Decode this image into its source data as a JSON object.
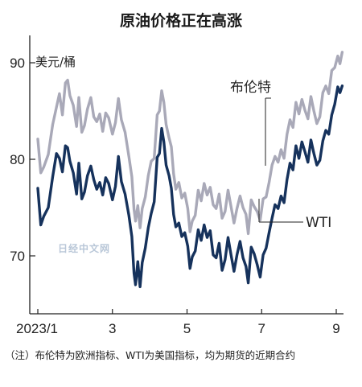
{
  "chart_data": {
    "type": "line",
    "title": "原油价格正在高涨",
    "unit_label": "美元/桶",
    "x_tick_labels": [
      "2023/1",
      "3",
      "5",
      "7",
      "9"
    ],
    "x_tick_months": [
      0,
      2,
      4,
      6,
      8
    ],
    "y_ticks": [
      70,
      80,
      90
    ],
    "ylim": [
      64.5,
      92
    ],
    "xlim_months": [
      0,
      8.3
    ],
    "grid": false,
    "note": "（注）布伦特为欧洲指标、WTI为美国指标，均为期货的近期合约",
    "watermark": "日经中文网",
    "series": [
      {
        "name": "布伦特",
        "color": "#a9a9b8",
        "points": [
          [
            0.0,
            82.1
          ],
          [
            0.08,
            78.6
          ],
          [
            0.16,
            79.2
          ],
          [
            0.28,
            80.5
          ],
          [
            0.4,
            83.6
          ],
          [
            0.5,
            85.4
          ],
          [
            0.58,
            86.8
          ],
          [
            0.66,
            84.6
          ],
          [
            0.74,
            87.9
          ],
          [
            0.8,
            88.2
          ],
          [
            0.86,
            86.6
          ],
          [
            0.95,
            85.6
          ],
          [
            1.04,
            83.4
          ],
          [
            1.1,
            86.4
          ],
          [
            1.18,
            82.8
          ],
          [
            1.25,
            83.5
          ],
          [
            1.33,
            85.2
          ],
          [
            1.42,
            86.4
          ],
          [
            1.5,
            84.4
          ],
          [
            1.58,
            83.9
          ],
          [
            1.66,
            84.7
          ],
          [
            1.74,
            82.9
          ],
          [
            1.82,
            84.8
          ],
          [
            1.9,
            84.3
          ],
          [
            2.0,
            82.6
          ],
          [
            2.08,
            83.8
          ],
          [
            2.16,
            86.3
          ],
          [
            2.24,
            84.1
          ],
          [
            2.34,
            82.8
          ],
          [
            2.44,
            80.3
          ],
          [
            2.52,
            78.2
          ],
          [
            2.58,
            74.8
          ],
          [
            2.62,
            73.6
          ],
          [
            2.68,
            75.2
          ],
          [
            2.74,
            72.9
          ],
          [
            2.8,
            74.9
          ],
          [
            2.88,
            76.1
          ],
          [
            2.96,
            78.3
          ],
          [
            3.04,
            79.8
          ],
          [
            3.12,
            80.1
          ],
          [
            3.2,
            84.6
          ],
          [
            3.26,
            85.0
          ],
          [
            3.32,
            87.1
          ],
          [
            3.38,
            85.9
          ],
          [
            3.44,
            83.6
          ],
          [
            3.52,
            82.2
          ],
          [
            3.58,
            81.3
          ],
          [
            3.64,
            78.5
          ],
          [
            3.7,
            76.9
          ],
          [
            3.78,
            77.6
          ],
          [
            3.86,
            76.0
          ],
          [
            3.94,
            76.5
          ],
          [
            4.02,
            74.9
          ],
          [
            4.08,
            72.5
          ],
          [
            4.14,
            73.6
          ],
          [
            4.22,
            74.2
          ],
          [
            4.3,
            76.8
          ],
          [
            4.38,
            75.7
          ],
          [
            4.46,
            77.5
          ],
          [
            4.54,
            76.3
          ],
          [
            4.62,
            77.1
          ],
          [
            4.7,
            75.3
          ],
          [
            4.78,
            74.9
          ],
          [
            4.86,
            76.4
          ],
          [
            4.94,
            73.9
          ],
          [
            5.02,
            74.6
          ],
          [
            5.1,
            76.8
          ],
          [
            5.18,
            75.1
          ],
          [
            5.26,
            73.4
          ],
          [
            5.34,
            74.9
          ],
          [
            5.42,
            76.2
          ],
          [
            5.5,
            75.0
          ],
          [
            5.58,
            74.3
          ],
          [
            5.64,
            72.3
          ],
          [
            5.72,
            75.8
          ],
          [
            5.8,
            75.1
          ],
          [
            5.88,
            74.6
          ],
          [
            5.96,
            73.7
          ],
          [
            6.04,
            75.9
          ],
          [
            6.12,
            76.1
          ],
          [
            6.2,
            77.6
          ],
          [
            6.28,
            79.4
          ],
          [
            6.36,
            80.3
          ],
          [
            6.44,
            79.7
          ],
          [
            6.52,
            81.0
          ],
          [
            6.6,
            80.1
          ],
          [
            6.68,
            82.6
          ],
          [
            6.76,
            84.1
          ],
          [
            6.84,
            83.3
          ],
          [
            6.92,
            85.9
          ],
          [
            7.0,
            84.7
          ],
          [
            7.08,
            86.2
          ],
          [
            7.16,
            85.1
          ],
          [
            7.24,
            84.2
          ],
          [
            7.32,
            86.5
          ],
          [
            7.4,
            85.0
          ],
          [
            7.48,
            83.7
          ],
          [
            7.56,
            84.4
          ],
          [
            7.64,
            86.9
          ],
          [
            7.72,
            87.6
          ],
          [
            7.8,
            86.8
          ],
          [
            7.88,
            89.2
          ],
          [
            7.96,
            89.5
          ],
          [
            8.04,
            90.7
          ],
          [
            8.1,
            89.9
          ],
          [
            8.16,
            91.1
          ]
        ]
      },
      {
        "name": "WTI",
        "color": "#16325c",
        "points": [
          [
            0.0,
            77.0
          ],
          [
            0.08,
            73.2
          ],
          [
            0.16,
            74.1
          ],
          [
            0.28,
            75.0
          ],
          [
            0.4,
            78.2
          ],
          [
            0.5,
            80.6
          ],
          [
            0.58,
            80.1
          ],
          [
            0.66,
            78.7
          ],
          [
            0.74,
            81.4
          ],
          [
            0.8,
            81.2
          ],
          [
            0.86,
            79.8
          ],
          [
            0.95,
            78.6
          ],
          [
            1.04,
            76.4
          ],
          [
            1.1,
            79.6
          ],
          [
            1.18,
            75.9
          ],
          [
            1.25,
            76.6
          ],
          [
            1.33,
            78.3
          ],
          [
            1.42,
            79.3
          ],
          [
            1.5,
            77.9
          ],
          [
            1.58,
            76.9
          ],
          [
            1.66,
            77.6
          ],
          [
            1.74,
            76.3
          ],
          [
            1.82,
            78.1
          ],
          [
            1.9,
            77.5
          ],
          [
            2.0,
            75.8
          ],
          [
            2.08,
            77.2
          ],
          [
            2.16,
            80.3
          ],
          [
            2.24,
            77.7
          ],
          [
            2.34,
            76.4
          ],
          [
            2.44,
            74.2
          ],
          [
            2.52,
            72.0
          ],
          [
            2.58,
            68.2
          ],
          [
            2.62,
            67.0
          ],
          [
            2.68,
            69.4
          ],
          [
            2.74,
            66.8
          ],
          [
            2.8,
            69.3
          ],
          [
            2.88,
            70.8
          ],
          [
            2.96,
            72.9
          ],
          [
            3.04,
            74.4
          ],
          [
            3.12,
            75.6
          ],
          [
            3.2,
            80.2
          ],
          [
            3.26,
            80.6
          ],
          [
            3.32,
            83.2
          ],
          [
            3.38,
            81.8
          ],
          [
            3.44,
            79.4
          ],
          [
            3.52,
            78.3
          ],
          [
            3.58,
            77.0
          ],
          [
            3.64,
            74.3
          ],
          [
            3.7,
            73.0
          ],
          [
            3.78,
            73.4
          ],
          [
            3.86,
            72.0
          ],
          [
            3.94,
            72.4
          ],
          [
            4.02,
            71.0
          ],
          [
            4.08,
            68.7
          ],
          [
            4.14,
            69.9
          ],
          [
            4.22,
            70.5
          ],
          [
            4.3,
            72.7
          ],
          [
            4.38,
            71.6
          ],
          [
            4.46,
            73.2
          ],
          [
            4.54,
            71.9
          ],
          [
            4.62,
            72.6
          ],
          [
            4.7,
            70.1
          ],
          [
            4.78,
            69.8
          ],
          [
            4.86,
            71.3
          ],
          [
            4.94,
            68.5
          ],
          [
            5.02,
            69.6
          ],
          [
            5.1,
            71.9
          ],
          [
            5.18,
            70.1
          ],
          [
            5.26,
            68.4
          ],
          [
            5.34,
            70.1
          ],
          [
            5.42,
            71.5
          ],
          [
            5.5,
            69.8
          ],
          [
            5.58,
            68.9
          ],
          [
            5.64,
            67.2
          ],
          [
            5.72,
            70.9
          ],
          [
            5.8,
            70.2
          ],
          [
            5.88,
            69.1
          ],
          [
            5.96,
            67.8
          ],
          [
            6.04,
            70.1
          ],
          [
            6.12,
            70.8
          ],
          [
            6.2,
            72.4
          ],
          [
            6.28,
            73.9
          ],
          [
            6.36,
            75.3
          ],
          [
            6.44,
            74.9
          ],
          [
            6.52,
            76.2
          ],
          [
            6.6,
            75.5
          ],
          [
            6.68,
            77.9
          ],
          [
            6.76,
            79.6
          ],
          [
            6.84,
            78.9
          ],
          [
            6.92,
            81.4
          ],
          [
            7.0,
            80.1
          ],
          [
            7.08,
            81.8
          ],
          [
            7.16,
            80.8
          ],
          [
            7.24,
            79.7
          ],
          [
            7.32,
            82.0
          ],
          [
            7.4,
            80.6
          ],
          [
            7.48,
            79.4
          ],
          [
            7.56,
            79.9
          ],
          [
            7.64,
            81.9
          ],
          [
            7.72,
            83.0
          ],
          [
            7.8,
            82.6
          ],
          [
            7.88,
            84.6
          ],
          [
            7.96,
            85.7
          ],
          [
            8.04,
            87.5
          ],
          [
            8.1,
            86.9
          ],
          [
            8.16,
            87.6
          ]
        ]
      }
    ]
  }
}
